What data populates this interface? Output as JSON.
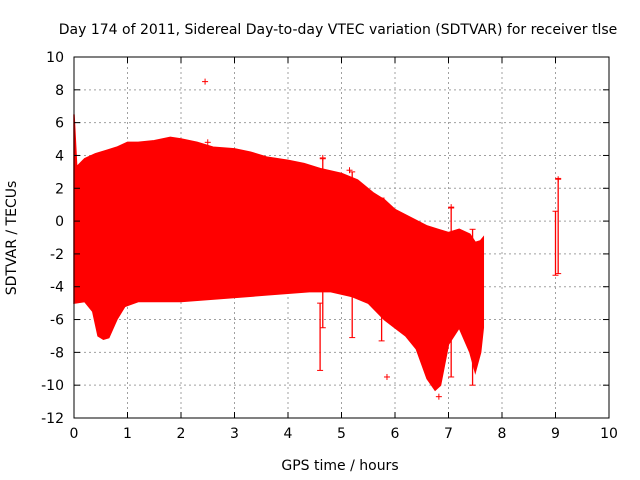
{
  "chart_data": {
    "type": "scatter",
    "title": "Day 174 of 2011, Sidereal Day-to-day VTEC variation (SDTVAR) for receiver tlse",
    "xlabel": "GPS time / hours",
    "ylabel": "SDTVAR / TECUs",
    "xlim": [
      0,
      10
    ],
    "ylim": [
      -12,
      10
    ],
    "x_ticks": [
      "0",
      "1",
      "2",
      "3",
      "4",
      "5",
      "6",
      "7",
      "8",
      "9",
      "10"
    ],
    "y_ticks": [
      "10",
      "8",
      "6",
      "4",
      "2",
      "0",
      "-2",
      "-4",
      "-6",
      "-8",
      "-10",
      "-12"
    ],
    "grid": true,
    "series_color": "#ff0000",
    "series": [
      {
        "name": "SDTVAR",
        "envelope_upper": [
          [
            0.0,
            6.5
          ],
          [
            0.05,
            3.3
          ],
          [
            0.2,
            3.8
          ],
          [
            0.4,
            4.1
          ],
          [
            0.6,
            4.3
          ],
          [
            0.8,
            4.5
          ],
          [
            1.0,
            4.8
          ],
          [
            1.2,
            4.8
          ],
          [
            1.5,
            4.9
          ],
          [
            1.8,
            5.1
          ],
          [
            2.0,
            5.0
          ],
          [
            2.3,
            4.8
          ],
          [
            2.6,
            4.5
          ],
          [
            3.0,
            4.4
          ],
          [
            3.3,
            4.2
          ],
          [
            3.6,
            3.9
          ],
          [
            4.0,
            3.7
          ],
          [
            4.3,
            3.5
          ],
          [
            4.6,
            3.2
          ],
          [
            5.0,
            2.9
          ],
          [
            5.3,
            2.5
          ],
          [
            5.6,
            1.7
          ],
          [
            5.8,
            1.3
          ],
          [
            6.0,
            0.7
          ],
          [
            6.3,
            0.2
          ],
          [
            6.6,
            -0.3
          ],
          [
            6.8,
            -0.5
          ],
          [
            7.0,
            -0.7
          ],
          [
            7.2,
            -0.5
          ],
          [
            7.4,
            -0.8
          ],
          [
            7.5,
            -1.3
          ],
          [
            7.6,
            -1.2
          ],
          [
            7.65,
            -1.0
          ]
        ],
        "envelope_lower": [
          [
            0.0,
            -5.0
          ],
          [
            0.2,
            -4.9
          ],
          [
            0.35,
            -5.5
          ],
          [
            0.45,
            -7.0
          ],
          [
            0.55,
            -7.2
          ],
          [
            0.65,
            -7.1
          ],
          [
            0.8,
            -6.0
          ],
          [
            0.95,
            -5.2
          ],
          [
            1.2,
            -4.9
          ],
          [
            1.6,
            -4.9
          ],
          [
            2.0,
            -4.9
          ],
          [
            2.4,
            -4.8
          ],
          [
            2.8,
            -4.7
          ],
          [
            3.2,
            -4.6
          ],
          [
            3.6,
            -4.5
          ],
          [
            4.0,
            -4.4
          ],
          [
            4.4,
            -4.3
          ],
          [
            4.8,
            -4.3
          ],
          [
            5.2,
            -4.6
          ],
          [
            5.5,
            -5.0
          ],
          [
            5.8,
            -6.0
          ],
          [
            6.0,
            -6.5
          ],
          [
            6.2,
            -7.0
          ],
          [
            6.4,
            -7.8
          ],
          [
            6.6,
            -9.6
          ],
          [
            6.75,
            -10.3
          ],
          [
            6.85,
            -10.0
          ],
          [
            7.0,
            -7.5
          ],
          [
            7.2,
            -6.5
          ],
          [
            7.4,
            -8.0
          ],
          [
            7.5,
            -9.2
          ],
          [
            7.6,
            -8.0
          ],
          [
            7.65,
            -6.5
          ]
        ],
        "spikes": [
          [
            4.6,
            -9.1,
            -5.0
          ],
          [
            4.65,
            -6.5,
            3.8
          ],
          [
            5.2,
            -7.1,
            3.0
          ],
          [
            5.75,
            -7.3,
            1.4
          ],
          [
            5.85,
            -5.0,
            1.0
          ],
          [
            7.05,
            -9.5,
            0.8
          ],
          [
            7.45,
            -10.0,
            -0.5
          ],
          [
            9.0,
            -3.3,
            0.6
          ],
          [
            9.05,
            -3.2,
            2.6
          ]
        ],
        "outliers": [
          [
            2.45,
            8.5
          ],
          [
            2.5,
            4.8
          ],
          [
            4.65,
            3.85
          ],
          [
            5.15,
            3.1
          ],
          [
            5.85,
            -9.5
          ],
          [
            6.82,
            -10.7
          ],
          [
            7.05,
            0.85
          ],
          [
            9.05,
            2.55
          ]
        ]
      }
    ]
  }
}
